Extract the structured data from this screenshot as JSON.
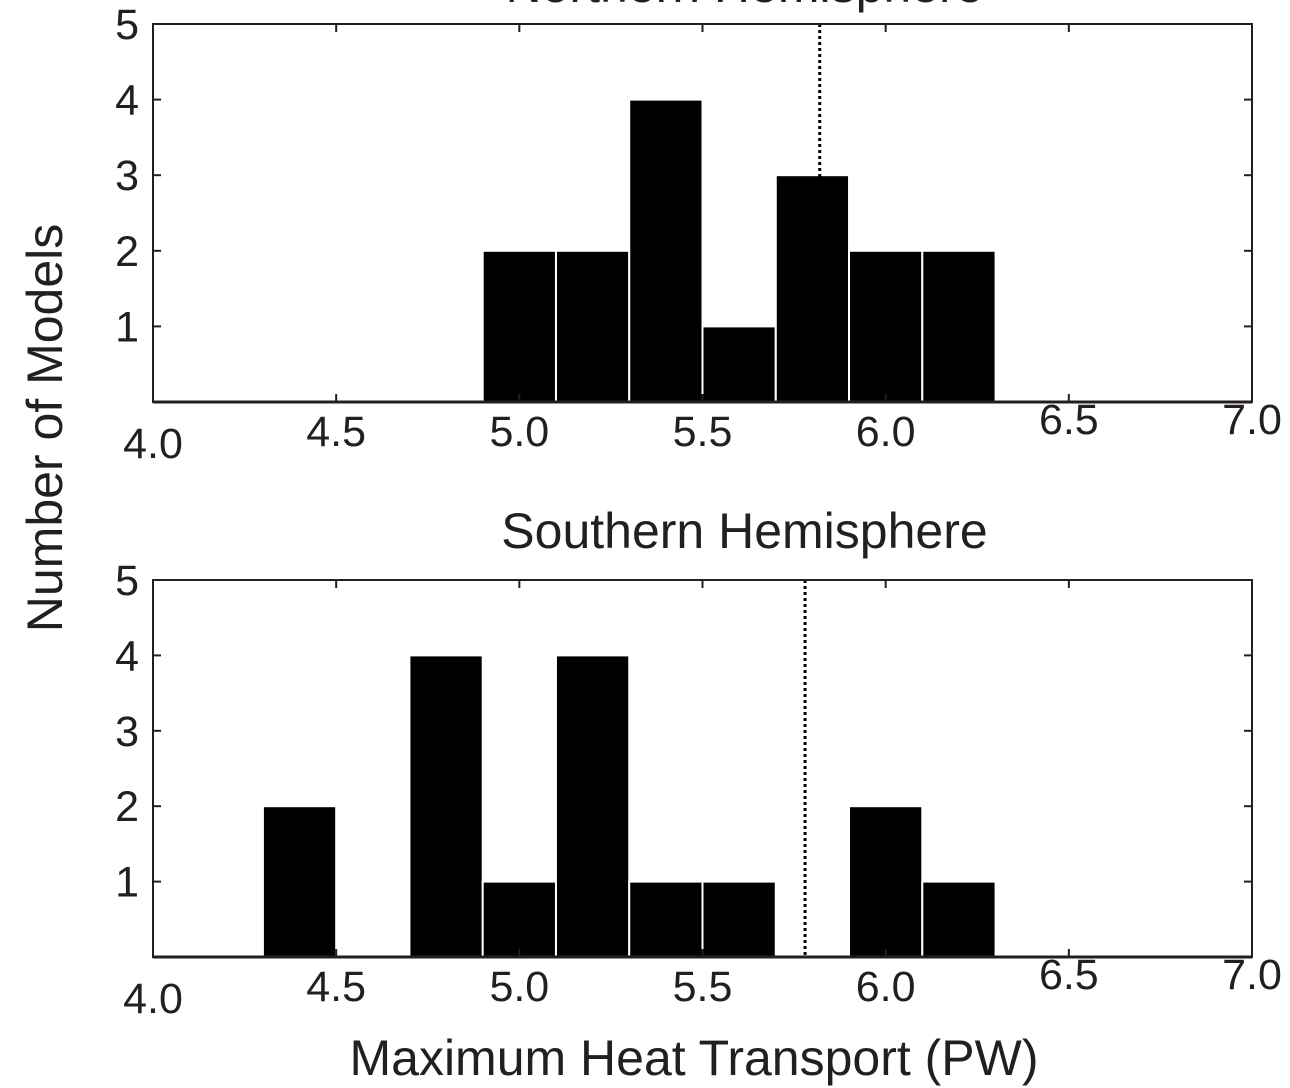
{
  "chart_data": [
    {
      "type": "bar",
      "title": "Northern Hemisphere",
      "xlim": [
        4.0,
        7.0
      ],
      "ylim": [
        0,
        5
      ],
      "xticks": [
        "4.0",
        "4.5",
        "5.0",
        "5.5",
        "6.0",
        "6.5",
        "7.0"
      ],
      "yticks": [
        "1",
        "2",
        "3",
        "4",
        "5"
      ],
      "bin_width": 0.2,
      "bins": [
        {
          "start": 4.9,
          "count": 2
        },
        {
          "start": 5.1,
          "count": 2
        },
        {
          "start": 5.3,
          "count": 4
        },
        {
          "start": 5.5,
          "count": 1
        },
        {
          "start": 5.7,
          "count": 3
        },
        {
          "start": 5.9,
          "count": 2
        },
        {
          "start": 6.1,
          "count": 2
        }
      ],
      "reference_line": 5.82
    },
    {
      "type": "bar",
      "title": "Southern Hemisphere",
      "xlim": [
        4.0,
        7.0
      ],
      "ylim": [
        0,
        5
      ],
      "xticks": [
        "4.0",
        "4.5",
        "5.0",
        "5.5",
        "6.0",
        "6.5",
        "7.0"
      ],
      "yticks": [
        "1",
        "2",
        "3",
        "4",
        "5"
      ],
      "bin_width": 0.2,
      "bins": [
        {
          "start": 4.3,
          "count": 2
        },
        {
          "start": 4.7,
          "count": 4
        },
        {
          "start": 4.9,
          "count": 1
        },
        {
          "start": 5.1,
          "count": 4
        },
        {
          "start": 5.3,
          "count": 1
        },
        {
          "start": 5.5,
          "count": 1
        },
        {
          "start": 5.9,
          "count": 2
        },
        {
          "start": 6.1,
          "count": 1
        }
      ],
      "reference_line": 5.78
    }
  ],
  "ylabel": "Number of Models",
  "xlabel": "Maximum Heat Transport (PW)"
}
